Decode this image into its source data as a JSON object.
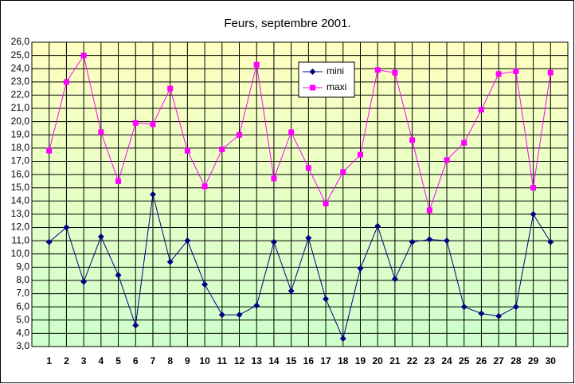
{
  "chart_data": {
    "type": "line",
    "title": "Feurs, septembre 2001.",
    "x": [
      1,
      2,
      3,
      4,
      5,
      6,
      7,
      8,
      9,
      10,
      11,
      12,
      13,
      14,
      15,
      16,
      17,
      18,
      19,
      20,
      21,
      22,
      23,
      24,
      25,
      26,
      27,
      28,
      29,
      30
    ],
    "xlim": [
      0,
      31
    ],
    "xticks": [
      1,
      2,
      3,
      4,
      5,
      6,
      7,
      8,
      9,
      10,
      11,
      12,
      13,
      14,
      15,
      16,
      17,
      18,
      19,
      20,
      21,
      22,
      23,
      24,
      25,
      26,
      27,
      28,
      29,
      30
    ],
    "ylim": [
      3,
      26
    ],
    "yticks": [
      {
        "value": 3,
        "label": "3,0"
      },
      {
        "value": 4,
        "label": "4,0"
      },
      {
        "value": 5,
        "label": "5,0"
      },
      {
        "value": 6,
        "label": "6,0"
      },
      {
        "value": 7,
        "label": "7,0"
      },
      {
        "value": 8,
        "label": "8,0"
      },
      {
        "value": 9,
        "label": "9,0"
      },
      {
        "value": 10,
        "label": "10,0"
      },
      {
        "value": 11,
        "label": "11,0"
      },
      {
        "value": 12,
        "label": "12,0"
      },
      {
        "value": 13,
        "label": "13,0"
      },
      {
        "value": 14,
        "label": "14,0"
      },
      {
        "value": 15,
        "label": "15,0"
      },
      {
        "value": 16,
        "label": "16,0"
      },
      {
        "value": 17,
        "label": "17,0"
      },
      {
        "value": 18,
        "label": "18,0"
      },
      {
        "value": 19,
        "label": "19,0"
      },
      {
        "value": 20,
        "label": "20,0"
      },
      {
        "value": 21,
        "label": "21,0"
      },
      {
        "value": 22,
        "label": "22,0"
      },
      {
        "value": 23,
        "label": "23,0"
      },
      {
        "value": 24,
        "label": "24,0"
      },
      {
        "value": 25,
        "label": "25,0"
      },
      {
        "value": 26,
        "label": "26,0"
      }
    ],
    "grid": true,
    "series": [
      {
        "name": "mini",
        "color": "#000080",
        "marker": "diamond",
        "values": [
          10.9,
          12.0,
          7.9,
          11.3,
          8.4,
          4.6,
          14.5,
          9.4,
          11.0,
          7.7,
          5.4,
          5.4,
          6.1,
          10.9,
          7.2,
          11.2,
          6.6,
          3.6,
          8.9,
          12.1,
          8.1,
          10.9,
          11.1,
          11.0,
          6.0,
          5.5,
          5.3,
          6.0,
          13.0,
          10.9
        ]
      },
      {
        "name": "maxi",
        "color": "#ff00ff",
        "marker": "square",
        "values": [
          17.8,
          23.0,
          25.0,
          19.2,
          15.5,
          19.9,
          19.8,
          22.5,
          17.8,
          15.1,
          17.9,
          19.0,
          24.3,
          15.7,
          19.2,
          16.5,
          13.8,
          16.2,
          17.5,
          23.9,
          23.7,
          18.6,
          13.3,
          17.1,
          18.4,
          20.9,
          23.6,
          23.8,
          15.0,
          23.7
        ]
      }
    ]
  }
}
